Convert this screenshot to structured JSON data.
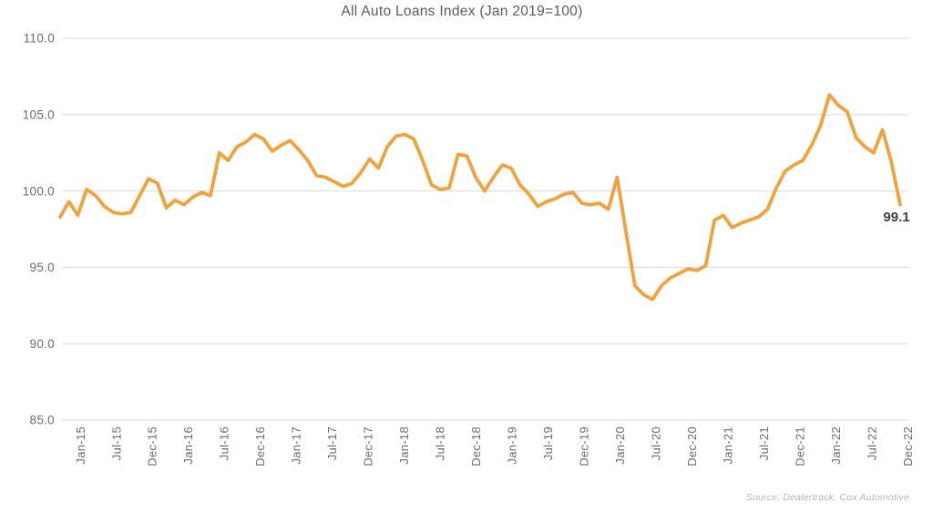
{
  "chart": {
    "title": "All Auto Loans Index (Jan 2019=100)",
    "end_label": "99.1",
    "source": "Source: Dealertrack, Cox Automotive"
  },
  "colors": {
    "line": "#F0A33C",
    "grid": "#D9D9D9",
    "axis_text": "#6A6A6A",
    "title_text": "#595959",
    "end_label_text": "#3F3F3F",
    "source_text": "#B5B5B5"
  },
  "chart_data": {
    "type": "line",
    "title": "All Auto Loans Index (Jan 2019=100)",
    "xlabel": "",
    "ylabel": "",
    "ylim": [
      85.0,
      110.0
    ],
    "y_ticks": [
      110.0,
      105.0,
      100.0,
      95.0,
      90.0,
      85.0
    ],
    "y_tick_labels": [
      "110.0",
      "105.0",
      "100.0",
      "95.0",
      "90.0",
      "85.0"
    ],
    "x_tick_labels": [
      "Jan-15",
      "Jul-15",
      "Dec-15",
      "Jan-16",
      "Jul-16",
      "Dec-16",
      "Jan-17",
      "Jul-17",
      "Dec-17",
      "Jan-18",
      "Jul-18",
      "Dec-18",
      "Jan-19",
      "Jul-19",
      "Dec-19",
      "Jan-20",
      "Jul-20",
      "Dec-20",
      "Jan-21",
      "Jul-21",
      "Dec-21",
      "Jan-22",
      "Jul-22",
      "Dec-22"
    ],
    "x_start": "Jan-15",
    "x_end": "Dec-22",
    "frequency": "monthly",
    "grid": "horizontal-only",
    "legend": "none",
    "series": [
      {
        "name": "All Auto Loans Index",
        "values": [
          98.3,
          99.3,
          98.4,
          100.1,
          99.7,
          99.0,
          98.6,
          98.5,
          98.6,
          99.7,
          100.8,
          100.5,
          98.9,
          99.4,
          99.1,
          99.6,
          99.9,
          99.7,
          102.5,
          102.0,
          102.9,
          103.2,
          103.7,
          103.4,
          102.6,
          103.0,
          103.3,
          102.7,
          102.0,
          101.0,
          100.9,
          100.6,
          100.3,
          100.5,
          101.2,
          102.1,
          101.5,
          102.9,
          103.6,
          103.7,
          103.4,
          102.0,
          100.4,
          100.1,
          100.2,
          102.4,
          102.3,
          100.9,
          100.0,
          100.9,
          101.7,
          101.5,
          100.4,
          99.8,
          99.0,
          99.3,
          99.5,
          99.8,
          99.9,
          99.2,
          99.1,
          99.2,
          98.8,
          100.9,
          97.3,
          93.8,
          93.2,
          92.9,
          93.8,
          94.3,
          94.6,
          94.9,
          94.8,
          95.1,
          98.1,
          98.4,
          97.6,
          97.9,
          98.1,
          98.3,
          98.8,
          100.2,
          101.3,
          101.7,
          102.0,
          103.0,
          104.3,
          106.3,
          105.6,
          105.2,
          103.5,
          102.9,
          102.5,
          104.0,
          101.9,
          99.1
        ]
      }
    ],
    "annotations": [
      {
        "text": "99.1",
        "at": "Dec-22"
      }
    ],
    "source_note": "Source: Dealertrack, Cox Automotive"
  }
}
